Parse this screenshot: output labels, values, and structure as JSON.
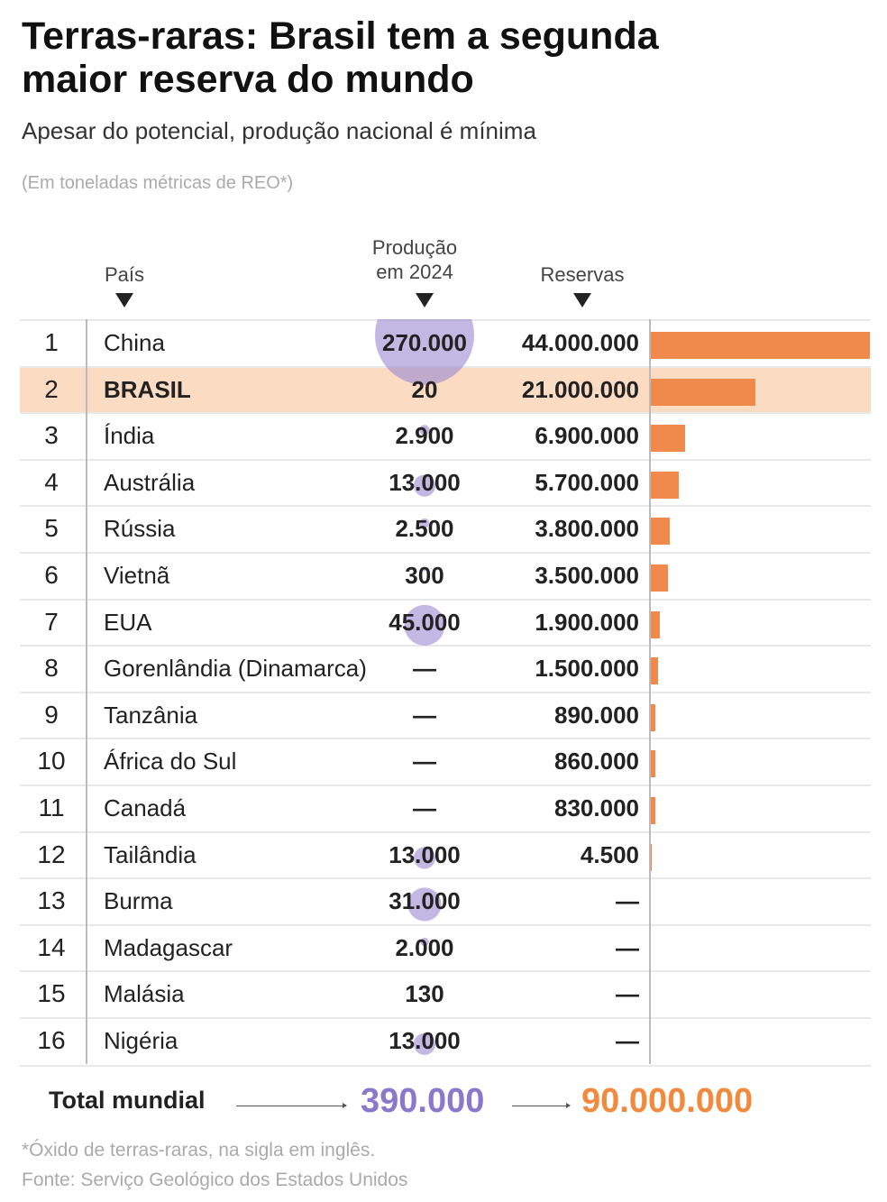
{
  "title": "Terras-raras: Brasil tem a segunda maior reserva do mundo",
  "subtitle": "Apesar do potencial, produção nacional é mínima",
  "unit_note": "(Em toneladas métricas de REO*)",
  "headers": {
    "country": "País",
    "production": "Produção em 2024",
    "reserves": "Reservas"
  },
  "colors": {
    "bubble": "#9a89d0",
    "bar": "#ef8a4c",
    "highlight_row": "#fbdcc3",
    "total_production": "#8b77cc",
    "total_reserves": "#f28a3e"
  },
  "chart_data": {
    "type": "table",
    "columns": [
      "País",
      "Produção em 2024",
      "Reservas"
    ],
    "rows": [
      {
        "rank": "1",
        "country": "China",
        "production": "270.000",
        "production_value": 270000,
        "reserves": "44.000.000",
        "reserves_value": 44000000
      },
      {
        "rank": "2",
        "country": "BRASIL",
        "production": "20",
        "production_value": 20,
        "reserves": "21.000.000",
        "reserves_value": 21000000,
        "highlight": true
      },
      {
        "rank": "3",
        "country": "Índia",
        "production": "2.900",
        "production_value": 2900,
        "reserves": "6.900.000",
        "reserves_value": 6900000
      },
      {
        "rank": "4",
        "country": "Austrália",
        "production": "13.000",
        "production_value": 13000,
        "reserves": "5.700.000",
        "reserves_value": 5700000
      },
      {
        "rank": "5",
        "country": "Rússia",
        "production": "2.500",
        "production_value": 2500,
        "reserves": "3.800.000",
        "reserves_value": 3800000
      },
      {
        "rank": "6",
        "country": "Vietnã",
        "production": "300",
        "production_value": 300,
        "reserves": "3.500.000",
        "reserves_value": 3500000
      },
      {
        "rank": "7",
        "country": "EUA",
        "production": "45.000",
        "production_value": 45000,
        "reserves": "1.900.000",
        "reserves_value": 1900000
      },
      {
        "rank": "8",
        "country": "Gorenlândia (Dinamarca)",
        "production": "—",
        "production_value": null,
        "reserves": "1.500.000",
        "reserves_value": 1500000
      },
      {
        "rank": "9",
        "country": "Tanzânia",
        "production": "—",
        "production_value": null,
        "reserves": "890.000",
        "reserves_value": 890000
      },
      {
        "rank": "10",
        "country": "África do Sul",
        "production": "—",
        "production_value": null,
        "reserves": "860.000",
        "reserves_value": 860000
      },
      {
        "rank": "11",
        "country": "Canadá",
        "production": "—",
        "production_value": null,
        "reserves": "830.000",
        "reserves_value": 830000
      },
      {
        "rank": "12",
        "country": "Tailândia",
        "production": "13.000",
        "production_value": 13000,
        "reserves": "4.500",
        "reserves_value": 4500
      },
      {
        "rank": "13",
        "country": "Burma",
        "production": "31.000",
        "production_value": 31000,
        "reserves": "—",
        "reserves_value": null
      },
      {
        "rank": "14",
        "country": "Madagascar",
        "production": "2.000",
        "production_value": 2000,
        "reserves": "—",
        "reserves_value": null
      },
      {
        "rank": "15",
        "country": "Malásia",
        "production": "130",
        "production_value": 130,
        "reserves": "—",
        "reserves_value": null
      },
      {
        "rank": "16",
        "country": "Nigéria",
        "production": "13.000",
        "production_value": 13000,
        "reserves": "—",
        "reserves_value": null
      }
    ]
  },
  "total": {
    "label": "Total mundial",
    "production": "390.000",
    "reserves": "90.000.000"
  },
  "footnote": "*Óxido de terras-raras, na sigla em inglês.",
  "source": "Fonte: Serviço Geológico dos Estados Unidos"
}
